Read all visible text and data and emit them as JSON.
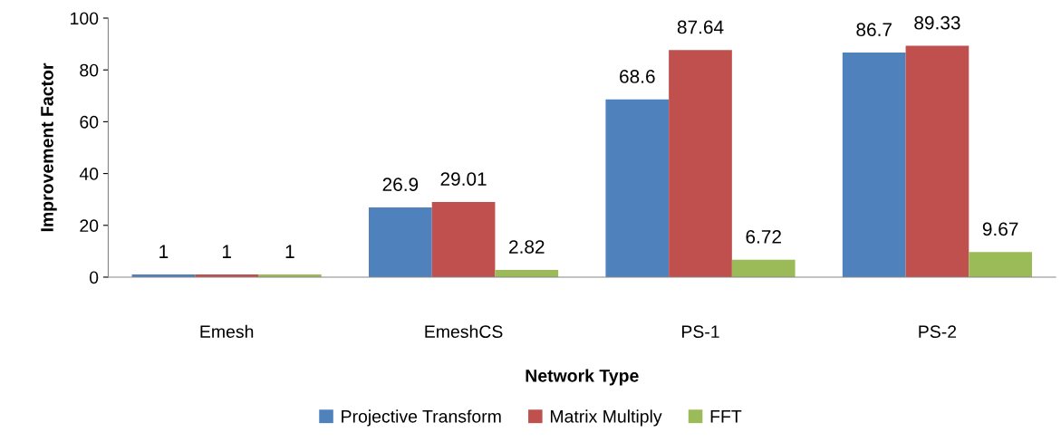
{
  "chart_data": {
    "type": "bar",
    "xlabel": "Network Type",
    "ylabel": "Improvement Factor",
    "categories": [
      "Emesh",
      "EmeshCS",
      "PS-1",
      "PS-2"
    ],
    "series": [
      {
        "name": "Projective Transform",
        "color": "#4f81bd",
        "values": [
          1,
          26.9,
          68.6,
          86.7
        ]
      },
      {
        "name": "Matrix Multiply",
        "color": "#c0504d",
        "values": [
          1,
          29.01,
          87.64,
          89.33
        ]
      },
      {
        "name": "FFT",
        "color": "#9bbb59",
        "values": [
          1,
          2.82,
          6.72,
          9.67
        ]
      }
    ],
    "ylim": [
      0,
      100
    ],
    "yticks": [
      0,
      20,
      40,
      60,
      80,
      100
    ],
    "data_labels": true,
    "legend": "bottom",
    "grid": false
  }
}
